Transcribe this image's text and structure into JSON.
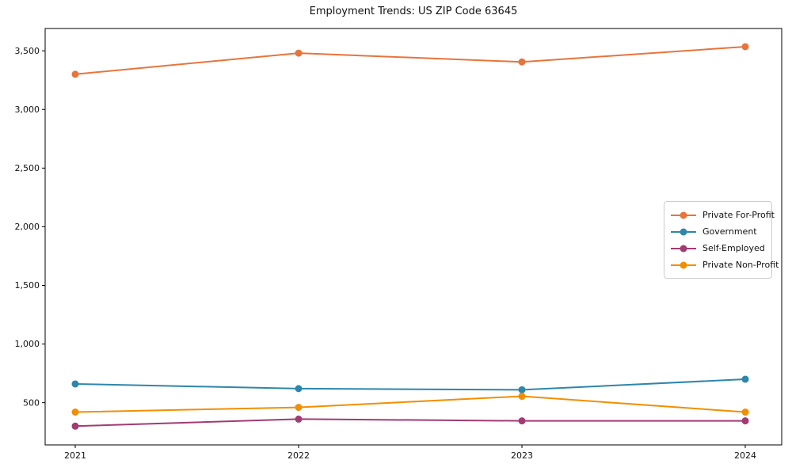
{
  "chart_data": {
    "type": "line",
    "title": "Employment Trends: US ZIP Code 63645",
    "categories": [
      "2021",
      "2022",
      "2023",
      "2024"
    ],
    "series": [
      {
        "name": "Private For-Profit",
        "color": "#E8743B",
        "values": [
          3300,
          3480,
          3405,
          3535
        ]
      },
      {
        "name": "Government",
        "color": "#2E86AB",
        "values": [
          660,
          620,
          610,
          700
        ]
      },
      {
        "name": "Self-Employed",
        "color": "#A23B72",
        "values": [
          300,
          360,
          345,
          345
        ]
      },
      {
        "name": "Private Non-Profit",
        "color": "#F18F01",
        "values": [
          420,
          460,
          555,
          420
        ]
      }
    ],
    "yticks": [
      500,
      1000,
      1500,
      2000,
      2500,
      3000,
      3500
    ],
    "ytick_labels": [
      "500",
      "1,000",
      "1,500",
      "2,000",
      "2,500",
      "3,000",
      "3,500"
    ],
    "ylim": [
      140,
      3690
    ],
    "xlabel": "",
    "ylabel": "",
    "grid": false,
    "legend_position": "center-right",
    "axis_color": "#000000",
    "text_color": "#111111",
    "background_color": "#ffffff"
  }
}
